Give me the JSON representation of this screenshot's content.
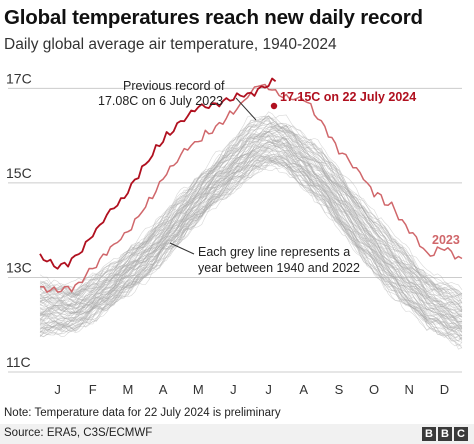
{
  "header": {
    "title": "Global temperatures reach new daily record",
    "subtitle": "Daily global average air temperature, 1940-2024"
  },
  "chart_data": {
    "type": "line",
    "y_ticks": [
      "17C",
      "15C",
      "13C",
      "11C"
    ],
    "y_tick_values": [
      17,
      15,
      13,
      11
    ],
    "ylim": [
      11,
      17.6
    ],
    "x_ticks": [
      "J",
      "F",
      "M",
      "A",
      "M",
      "J",
      "J",
      "A",
      "S",
      "O",
      "N",
      "D"
    ],
    "xlim": [
      0,
      12
    ],
    "grid": true,
    "colors": {
      "record_2023": "#d0676b",
      "record_2024": "#b0101f",
      "historic": "#a9a9a9",
      "annotation": "#333333",
      "grid": "#cccccc"
    },
    "series": [
      {
        "name": "2023",
        "x": [
          0,
          0.5,
          1,
          1.5,
          2,
          2.5,
          3,
          3.5,
          4,
          4.5,
          5,
          5.5,
          6,
          6.2,
          6.5,
          7,
          7.5,
          8,
          8.5,
          9,
          9.5,
          10,
          10.5,
          11,
          11.5,
          12
        ],
        "values": [
          12.8,
          12.7,
          12.8,
          13.2,
          13.6,
          14.0,
          14.5,
          15.1,
          15.6,
          15.9,
          16.2,
          16.5,
          16.9,
          17.08,
          17.0,
          16.8,
          16.8,
          16.3,
          15.7,
          15.3,
          14.8,
          14.5,
          14.0,
          13.5,
          13.6,
          13.4
        ]
      },
      {
        "name": "2024",
        "x": [
          0,
          0.5,
          1,
          1.5,
          2,
          2.5,
          3,
          3.5,
          4,
          4.5,
          5,
          5.5,
          5.9,
          6.2,
          6.7
        ],
        "values": [
          13.5,
          13.2,
          13.4,
          13.9,
          14.4,
          14.8,
          15.4,
          15.9,
          16.3,
          16.6,
          16.7,
          16.8,
          16.85,
          16.95,
          17.15
        ]
      }
    ],
    "historic_envelope": {
      "x": [
        0,
        1,
        2,
        3,
        4,
        5,
        6,
        6.5,
        7,
        8,
        9,
        10,
        11,
        12
      ],
      "low": [
        11.8,
        11.9,
        12.4,
        13.0,
        13.8,
        14.6,
        15.2,
        15.4,
        15.3,
        14.6,
        13.6,
        12.7,
        12.0,
        11.6
      ],
      "high": [
        13.0,
        12.9,
        13.3,
        14.0,
        14.8,
        15.6,
        16.4,
        16.5,
        16.4,
        15.8,
        14.9,
        14.0,
        13.2,
        12.8
      ]
    },
    "annotations": {
      "previous_record_line1": "Previous record of",
      "previous_record_line2": "17.08C on 6 July 2023",
      "new_record": "17.15C on 22 July 2024",
      "label_2023": "2023",
      "grey_line_line1": "Each grey line represents a",
      "grey_line_line2": "year between 1940 and 2022"
    }
  },
  "footer": {
    "note": "Note: Temperature data for 22 July 2024 is preliminary",
    "source": "Source: ERA5, C3S/ECMWF",
    "logo_letters": [
      "B",
      "B",
      "C"
    ]
  }
}
